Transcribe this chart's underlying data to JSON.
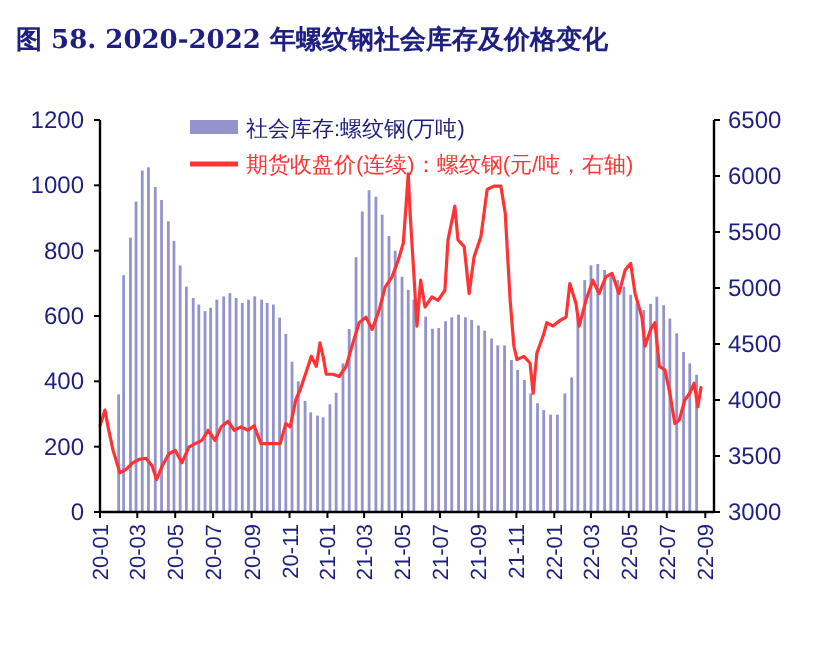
{
  "chart_data": {
    "type": "bar",
    "title": "图 58. 2020-2022 年螺纹钢社会库存及价格变化",
    "xlim": [
      "2020-01-01",
      "2022-09-15"
    ],
    "xticks": [
      {
        "value": "2020-01",
        "label": "20-01"
      },
      {
        "value": "2020-03",
        "label": "20-03"
      },
      {
        "value": "2020-05",
        "label": "20-05"
      },
      {
        "value": "2020-07",
        "label": "20-07"
      },
      {
        "value": "2020-09",
        "label": "20-09"
      },
      {
        "value": "2020-11",
        "label": "20-11"
      },
      {
        "value": "2021-01",
        "label": "21-01"
      },
      {
        "value": "2021-03",
        "label": "21-03"
      },
      {
        "value": "2021-05",
        "label": "21-05"
      },
      {
        "value": "2021-07",
        "label": "21-07"
      },
      {
        "value": "2021-09",
        "label": "21-09"
      },
      {
        "value": "2021-11",
        "label": "21-11"
      },
      {
        "value": "2022-01",
        "label": "22-01"
      },
      {
        "value": "2022-03",
        "label": "22-03"
      },
      {
        "value": "2022-05",
        "label": "22-05"
      },
      {
        "value": "2022-07",
        "label": "22-07"
      },
      {
        "value": "2022-09",
        "label": "22-09"
      }
    ],
    "ylim": [
      0,
      1200
    ],
    "yticks": [
      0,
      200,
      400,
      600,
      800,
      1000,
      1200
    ],
    "y2lim": [
      3000,
      6500
    ],
    "y2ticks": [
      3000,
      3500,
      4000,
      4500,
      5000,
      5500,
      6000,
      6500
    ],
    "legend": "top",
    "grid": false,
    "series": [
      {
        "name": "社会库存:螺纹钢(万吨)",
        "type": "bar",
        "color": "#9494cc",
        "x": [
          "2020-01-31",
          "2020-02-08",
          "2020-02-19",
          "2020-02-28",
          "2020-03-09",
          "2020-03-19",
          "2020-03-30",
          "2020-04-09",
          "2020-04-20",
          "2020-04-29",
          "2020-05-09",
          "2020-05-19",
          "2020-05-30",
          "2020-06-08",
          "2020-06-18",
          "2020-06-27",
          "2020-07-07",
          "2020-07-18",
          "2020-07-28",
          "2020-08-07",
          "2020-08-17",
          "2020-08-27",
          "2020-09-06",
          "2020-09-17",
          "2020-09-26",
          "2020-10-06",
          "2020-10-16",
          "2020-10-26",
          "2020-11-05",
          "2020-11-15",
          "2020-11-26",
          "2020-12-05",
          "2020-12-16",
          "2020-12-25",
          "2021-01-05",
          "2021-01-15",
          "2021-01-26",
          "2021-02-05",
          "2021-02-16",
          "2021-02-26",
          "2021-03-09",
          "2021-03-20",
          "2021-03-30",
          "2021-04-10",
          "2021-04-20",
          "2021-05-01",
          "2021-05-11",
          "2021-05-20",
          "2021-06-08",
          "2021-06-19",
          "2021-06-29",
          "2021-07-10",
          "2021-07-20",
          "2021-07-31",
          "2021-08-11",
          "2021-08-21",
          "2021-09-01",
          "2021-09-11",
          "2021-09-22",
          "2021-10-02",
          "2021-10-13",
          "2021-10-24",
          "2021-11-03",
          "2021-11-14",
          "2021-11-24",
          "2021-12-05",
          "2021-12-15",
          "2021-12-26",
          "2022-01-06",
          "2022-01-18",
          "2022-01-29",
          "2022-02-08",
          "2022-02-19",
          "2022-03-01",
          "2022-03-12",
          "2022-03-23",
          "2022-04-02",
          "2022-04-13",
          "2022-04-23",
          "2022-05-04",
          "2022-05-14",
          "2022-05-25",
          "2022-06-05",
          "2022-06-15",
          "2022-06-26",
          "2022-07-06",
          "2022-07-17",
          "2022-07-28",
          "2022-08-07",
          "2022-08-18"
        ],
        "values": [
          360,
          725,
          840,
          950,
          1045,
          1055,
          995,
          955,
          890,
          830,
          755,
          690,
          655,
          635,
          615,
          625,
          650,
          660,
          670,
          655,
          640,
          650,
          660,
          650,
          640,
          635,
          595,
          545,
          460,
          400,
          340,
          305,
          295,
          290,
          330,
          365,
          455,
          560,
          780,
          920,
          985,
          965,
          910,
          845,
          800,
          720,
          680,
          650,
          598,
          561,
          563,
          584,
          596,
          604,
          596,
          588,
          571,
          555,
          531,
          510,
          510,
          465,
          435,
          404,
          363,
          333,
          312,
          298,
          298,
          363,
          412,
          604,
          710,
          755,
          759,
          741,
          727,
          710,
          690,
          665,
          639,
          618,
          637,
          659,
          633,
          592,
          547,
          490,
          455,
          420
        ]
      },
      {
        "name": "期货收盘价(连续)：螺纹钢(元/吨，右轴)",
        "type": "line",
        "axis": "y2",
        "color": "#ff3333",
        "x": [
          "2020-01-01",
          "2020-01-09",
          "2020-01-14",
          "2020-01-22",
          "2020-02-02",
          "2020-02-12",
          "2020-02-23",
          "2020-03-04",
          "2020-03-15",
          "2020-03-25",
          "2020-04-01",
          "2020-04-10",
          "2020-04-21",
          "2020-05-01",
          "2020-05-12",
          "2020-05-23",
          "2020-06-02",
          "2020-06-13",
          "2020-06-23",
          "2020-07-04",
          "2020-07-14",
          "2020-07-25",
          "2020-08-04",
          "2020-08-15",
          "2020-08-26",
          "2020-09-05",
          "2020-09-16",
          "2020-09-26",
          "2020-10-07",
          "2020-10-17",
          "2020-10-26",
          "2020-11-02",
          "2020-11-11",
          "2020-11-18",
          "2020-11-29",
          "2020-12-06",
          "2020-12-14",
          "2020-12-20",
          "2020-12-25",
          "2020-12-30",
          "2021-01-10",
          "2021-01-20",
          "2021-01-31",
          "2021-02-11",
          "2021-02-21",
          "2021-03-04",
          "2021-03-14",
          "2021-03-25",
          "2021-04-04",
          "2021-04-15",
          "2021-04-25",
          "2021-05-03",
          "2021-05-07",
          "2021-05-11",
          "2021-05-14",
          "2021-05-20",
          "2021-05-25",
          "2021-05-31",
          "2021-06-07",
          "2021-06-18",
          "2021-06-28",
          "2021-07-09",
          "2021-07-14",
          "2021-07-25",
          "2021-07-30",
          "2021-08-09",
          "2021-08-17",
          "2021-08-25",
          "2021-09-05",
          "2021-09-15",
          "2021-09-26",
          "2021-10-07",
          "2021-10-14",
          "2021-10-22",
          "2021-10-28",
          "2021-11-02",
          "2021-11-13",
          "2021-11-23",
          "2021-11-28",
          "2021-12-04",
          "2021-12-14",
          "2021-12-20",
          "2021-12-30",
          "2022-01-10",
          "2022-01-20",
          "2022-01-26",
          "2022-02-05",
          "2022-02-10",
          "2022-02-21",
          "2022-03-04",
          "2022-03-14",
          "2022-03-25",
          "2022-04-04",
          "2022-04-15",
          "2022-04-25",
          "2022-05-04",
          "2022-05-11",
          "2022-05-22",
          "2022-05-27",
          "2022-06-05",
          "2022-06-12",
          "2022-06-19",
          "2022-06-28",
          "2022-07-06",
          "2022-07-14",
          "2022-07-21",
          "2022-07-30",
          "2022-08-07",
          "2022-08-14",
          "2022-08-20",
          "2022-08-25"
        ],
        "values": [
          3770,
          3910,
          3760,
          3550,
          3350,
          3380,
          3440,
          3470,
          3480,
          3410,
          3290,
          3410,
          3520,
          3550,
          3440,
          3580,
          3610,
          3640,
          3730,
          3640,
          3760,
          3810,
          3730,
          3760,
          3730,
          3770,
          3610,
          3610,
          3610,
          3610,
          3790,
          3760,
          4000,
          4090,
          4270,
          4390,
          4300,
          4510,
          4390,
          4230,
          4230,
          4210,
          4300,
          4510,
          4690,
          4740,
          4630,
          4800,
          5010,
          5100,
          5250,
          5400,
          5700,
          6020,
          5670,
          5130,
          4660,
          5070,
          4830,
          4920,
          4890,
          4980,
          5430,
          5730,
          5430,
          5370,
          4950,
          5280,
          5460,
          5880,
          5910,
          5910,
          5670,
          4890,
          4480,
          4360,
          4390,
          4330,
          4060,
          4420,
          4570,
          4690,
          4660,
          4710,
          4740,
          5040,
          4860,
          4660,
          4890,
          5070,
          4950,
          5100,
          5130,
          4950,
          5160,
          5220,
          4950,
          4740,
          4480,
          4630,
          4690,
          4300,
          4270,
          4060,
          3790,
          3820,
          4000,
          4060,
          4150,
          3940,
          4110
        ]
      }
    ]
  }
}
